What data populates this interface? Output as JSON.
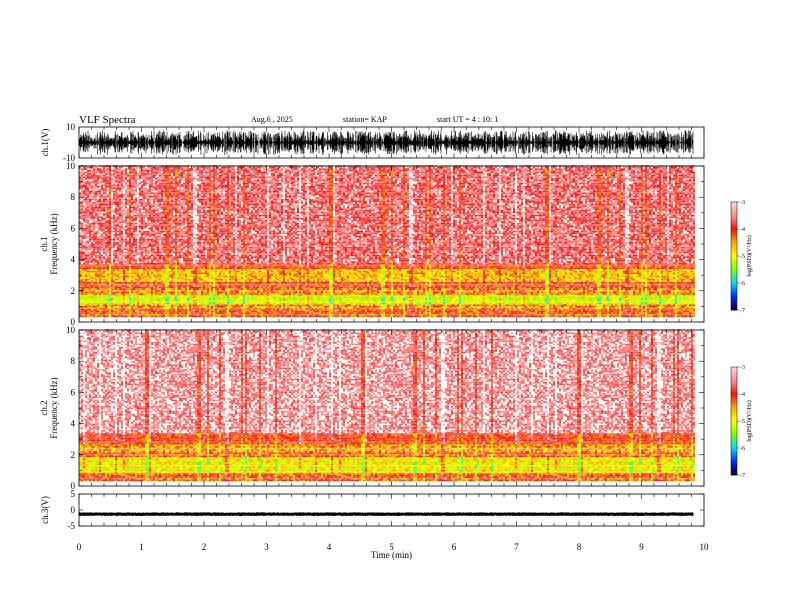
{
  "header": {
    "title": "VLF Spectra",
    "date": "Aug.6  , 2025",
    "station": "station= KAP",
    "start": "start  UT  =   4 : 10: 1"
  },
  "chart_data": [
    {
      "type": "line",
      "name": "ch1-waveform",
      "ylabel": "ch.1(V)",
      "ylim": [
        -10,
        10
      ],
      "yticks": [
        "10",
        "-10"
      ],
      "xlim": [
        0,
        10
      ],
      "x_data_end": 9.83,
      "amplitude_range": [
        -8,
        8
      ]
    },
    {
      "type": "heatmap",
      "name": "ch1-spectrogram",
      "ylabel": "ch.1\nFrequency  (kHz)",
      "ylim": [
        0,
        10
      ],
      "yticks": [
        "0",
        "2",
        "4",
        "6",
        "8",
        "10"
      ],
      "xlim": [
        0,
        10
      ],
      "x_data_end": 9.83,
      "bands": [
        {
          "from": 0.3,
          "to": 0.8,
          "level": -4.2
        },
        {
          "from": 0.8,
          "to": 1.1,
          "level": -4.4
        },
        {
          "from": 1.1,
          "to": 1.7,
          "level": -5.1
        },
        {
          "from": 1.7,
          "to": 2.1,
          "level": -4.4
        },
        {
          "from": 2.1,
          "to": 2.5,
          "level": -4.1
        },
        {
          "from": 2.5,
          "to": 3.3,
          "level": -4.6
        },
        {
          "from": 3.3,
          "to": 3.6,
          "level": -4.1
        },
        {
          "from": 3.6,
          "to": 10.0,
          "level": -3.6
        }
      ],
      "colorbar": {
        "min": -7,
        "max": -3,
        "ticks": [
          "-3",
          "-4",
          "-5",
          "-6",
          "-7"
        ],
        "label": "log(PSD)(V²/Hz)"
      }
    },
    {
      "type": "heatmap",
      "name": "ch2-spectrogram",
      "ylabel": "ch.2\nFrequency  (kHz)",
      "ylim": [
        0,
        10
      ],
      "yticks": [
        "0",
        "2",
        "4",
        "6",
        "8",
        "10"
      ],
      "xlim": [
        0,
        10
      ],
      "x_data_end": 9.83,
      "bands": [
        {
          "from": 0.3,
          "to": 0.8,
          "level": -4.2
        },
        {
          "from": 0.8,
          "to": 1.8,
          "level": -4.9
        },
        {
          "from": 1.8,
          "to": 2.1,
          "level": -4.2
        },
        {
          "from": 2.1,
          "to": 2.6,
          "level": -4.5
        },
        {
          "from": 2.6,
          "to": 3.3,
          "level": -4.0
        },
        {
          "from": 3.3,
          "to": 10.0,
          "level": -3.4
        }
      ],
      "colorbar": {
        "min": -7,
        "max": -3,
        "ticks": [
          "-3",
          "-4",
          "-5",
          "-6",
          "-7"
        ],
        "label": "log(PSD)(V²/Hz)"
      }
    },
    {
      "type": "line",
      "name": "ch3-waveform",
      "ylabel": "ch.3(V)",
      "ylim": [
        -5,
        5
      ],
      "yticks": [
        "5",
        "0",
        "-5"
      ],
      "xlim": [
        0,
        10
      ],
      "x_data_end": 9.83,
      "baseline": -1.3,
      "amplitude": 0.6
    }
  ],
  "xaxis": {
    "label": "Time  (min)",
    "ticks": [
      "0",
      "1",
      "2",
      "3",
      "4",
      "5",
      "6",
      "7",
      "8",
      "9",
      "10"
    ],
    "range": [
      0,
      10
    ]
  }
}
